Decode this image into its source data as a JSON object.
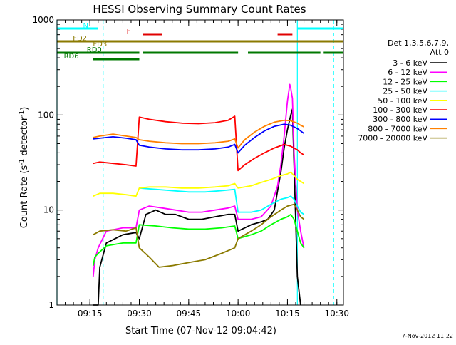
{
  "chart_data": {
    "type": "line",
    "title": "HESSI Observing Summary Count Rates",
    "xlabel": "Start Time (07-Nov-12 09:04:42)",
    "ylabel_main": "Count Rate (s",
    "ylabel_sup1": "-1",
    "ylabel_mid": " detector",
    "ylabel_sup2": "-1",
    "ylabel_end": ")",
    "y_scale": "log",
    "ylim": [
      1,
      1000
    ],
    "xlim_minutes": [
      0,
      87
    ],
    "x_ticks": [
      {
        "minute": 10,
        "label": "09:15"
      },
      {
        "minute": 25,
        "label": "09:30"
      },
      {
        "minute": 40,
        "label": "09:45"
      },
      {
        "minute": 55,
        "label": "10:00"
      },
      {
        "minute": 70,
        "label": "10:15"
      },
      {
        "minute": 85,
        "label": "10:30"
      }
    ],
    "y_ticks": [
      {
        "value": 1,
        "label": "1"
      },
      {
        "value": 10,
        "label": "10"
      },
      {
        "value": 100,
        "label": "100"
      },
      {
        "value": 1000,
        "label": "1000"
      }
    ],
    "legend": {
      "title_line1": "Det 1,3,5,6,7,9,",
      "title_line2": "Att 0",
      "placement": "right"
    },
    "series": [
      {
        "name": "3 - 6 keV",
        "color": "#000000",
        "points": [
          [
            11,
            1.0
          ],
          [
            12.5,
            1.0
          ],
          [
            13,
            2.5
          ],
          [
            15,
            4.5
          ],
          [
            20,
            5.5
          ],
          [
            24,
            5.8
          ],
          [
            25,
            5.0
          ],
          [
            27,
            9
          ],
          [
            30,
            10
          ],
          [
            33,
            9
          ],
          [
            36,
            9
          ],
          [
            40,
            8
          ],
          [
            44,
            8
          ],
          [
            48,
            8.5
          ],
          [
            52,
            9
          ],
          [
            54,
            9
          ],
          [
            55,
            6
          ],
          [
            59,
            7
          ],
          [
            62,
            7.5
          ],
          [
            64,
            8
          ],
          [
            66,
            10
          ],
          [
            67,
            16
          ],
          [
            68,
            25
          ],
          [
            69,
            45
          ],
          [
            70,
            70
          ],
          [
            71,
            100
          ],
          [
            71.5,
            115
          ],
          [
            72,
            30
          ],
          [
            73,
            2
          ],
          [
            74,
            1.0
          ]
        ]
      },
      {
        "name": "6 - 12 keV",
        "color": "#ff00ff",
        "points": [
          [
            11,
            2.0
          ],
          [
            11.5,
            3
          ],
          [
            12.5,
            4
          ],
          [
            15,
            6
          ],
          [
            20,
            6.5
          ],
          [
            24,
            6.5
          ],
          [
            25,
            10
          ],
          [
            28,
            11
          ],
          [
            32,
            10.5
          ],
          [
            36,
            10
          ],
          [
            40,
            9.5
          ],
          [
            44,
            9.5
          ],
          [
            48,
            10
          ],
          [
            52,
            10.5
          ],
          [
            54,
            11
          ],
          [
            55,
            8
          ],
          [
            59,
            8
          ],
          [
            62,
            8.5
          ],
          [
            65,
            11
          ],
          [
            67,
            18
          ],
          [
            68,
            30
          ],
          [
            69,
            60
          ],
          [
            70,
            140
          ],
          [
            70.7,
            210
          ],
          [
            71,
            190
          ],
          [
            71.5,
            150
          ],
          [
            72,
            40
          ],
          [
            73,
            10
          ],
          [
            74,
            6
          ],
          [
            75,
            4
          ]
        ]
      },
      {
        "name": "12 - 25 keV",
        "color": "#00ff00",
        "points": [
          [
            11,
            2.6
          ],
          [
            11.5,
            3.2
          ],
          [
            12.5,
            3.5
          ],
          [
            15,
            4.2
          ],
          [
            20,
            4.5
          ],
          [
            24,
            4.5
          ],
          [
            25,
            7
          ],
          [
            30,
            6.8
          ],
          [
            35,
            6.5
          ],
          [
            40,
            6.3
          ],
          [
            45,
            6.3
          ],
          [
            50,
            6.5
          ],
          [
            54,
            6.8
          ],
          [
            55,
            5
          ],
          [
            59,
            5.5
          ],
          [
            62,
            6
          ],
          [
            65,
            7
          ],
          [
            68,
            8
          ],
          [
            70,
            8.5
          ],
          [
            71,
            9
          ],
          [
            72,
            8
          ],
          [
            73,
            6
          ],
          [
            74,
            4.5
          ],
          [
            75,
            4
          ]
        ]
      },
      {
        "name": "25 - 50 keV",
        "color": "#00ffff",
        "points": [
          [
            11,
            0
          ],
          [
            25,
            0
          ],
          [
            25,
            17
          ],
          [
            30,
            16.5
          ],
          [
            35,
            16
          ],
          [
            40,
            15.5
          ],
          [
            45,
            15.5
          ],
          [
            50,
            16
          ],
          [
            54,
            16.5
          ],
          [
            55,
            9.5
          ],
          [
            59,
            9.5
          ],
          [
            62,
            10
          ],
          [
            65,
            11.5
          ],
          [
            68,
            13
          ],
          [
            70,
            13.5
          ],
          [
            71,
            14
          ],
          [
            72,
            13
          ],
          [
            73,
            11
          ],
          [
            74,
            9.5
          ],
          [
            75,
            9
          ]
        ]
      },
      {
        "name": "50 - 100 keV",
        "color": "#ffff00",
        "points": [
          [
            11,
            14
          ],
          [
            13,
            15
          ],
          [
            17,
            15
          ],
          [
            21,
            14.5
          ],
          [
            24,
            14
          ],
          [
            25,
            17
          ],
          [
            28,
            17.5
          ],
          [
            33,
            17.5
          ],
          [
            38,
            17
          ],
          [
            43,
            17
          ],
          [
            48,
            17.5
          ],
          [
            52,
            18
          ],
          [
            54,
            19
          ],
          [
            55,
            17
          ],
          [
            59,
            18
          ],
          [
            62,
            19.5
          ],
          [
            65,
            21
          ],
          [
            68,
            23
          ],
          [
            70,
            24
          ],
          [
            71,
            25
          ],
          [
            72,
            23
          ],
          [
            73,
            21
          ],
          [
            74,
            20
          ],
          [
            75,
            19
          ]
        ]
      },
      {
        "name": "100 - 300 keV",
        "color": "#ff0000",
        "points": [
          [
            11,
            31
          ],
          [
            13,
            32
          ],
          [
            17,
            31
          ],
          [
            21,
            30
          ],
          [
            24,
            29
          ],
          [
            25,
            95
          ],
          [
            28,
            90
          ],
          [
            33,
            85
          ],
          [
            38,
            82
          ],
          [
            43,
            81
          ],
          [
            48,
            83
          ],
          [
            52,
            88
          ],
          [
            54,
            97
          ],
          [
            55,
            26
          ],
          [
            57,
            30
          ],
          [
            60,
            35
          ],
          [
            63,
            40
          ],
          [
            66,
            45
          ],
          [
            69,
            49
          ],
          [
            71,
            47
          ],
          [
            73,
            43
          ],
          [
            74,
            40
          ],
          [
            75,
            38
          ]
        ]
      },
      {
        "name": "300 - 800 keV",
        "color": "#0000ff",
        "points": [
          [
            11,
            56
          ],
          [
            13,
            57
          ],
          [
            17,
            59
          ],
          [
            21,
            57
          ],
          [
            24,
            55
          ],
          [
            25,
            48
          ],
          [
            28,
            46
          ],
          [
            33,
            44
          ],
          [
            38,
            43
          ],
          [
            43,
            43
          ],
          [
            48,
            44
          ],
          [
            52,
            46
          ],
          [
            54,
            49
          ],
          [
            55,
            40
          ],
          [
            57,
            48
          ],
          [
            60,
            58
          ],
          [
            63,
            68
          ],
          [
            66,
            76
          ],
          [
            69,
            80
          ],
          [
            71,
            78
          ],
          [
            73,
            72
          ],
          [
            74,
            68
          ],
          [
            75,
            64
          ]
        ]
      },
      {
        "name": "800 - 7000 keV",
        "color": "#ff8000",
        "points": [
          [
            11,
            58
          ],
          [
            13,
            60
          ],
          [
            17,
            63
          ],
          [
            21,
            60
          ],
          [
            24,
            58
          ],
          [
            25,
            55
          ],
          [
            28,
            53
          ],
          [
            33,
            51
          ],
          [
            38,
            50
          ],
          [
            43,
            50
          ],
          [
            48,
            51
          ],
          [
            52,
            53
          ],
          [
            54,
            56
          ],
          [
            55,
            45
          ],
          [
            57,
            55
          ],
          [
            60,
            66
          ],
          [
            63,
            76
          ],
          [
            66,
            84
          ],
          [
            69,
            88
          ],
          [
            71,
            87
          ],
          [
            73,
            82
          ],
          [
            74,
            78
          ],
          [
            75,
            75
          ]
        ]
      },
      {
        "name": "7000 - 20000 keV",
        "color": "#8b7a00",
        "points": [
          [
            11,
            5.5
          ],
          [
            13,
            6
          ],
          [
            17,
            6.2
          ],
          [
            21,
            6
          ],
          [
            24,
            6.5
          ],
          [
            25,
            4
          ],
          [
            28,
            3.2
          ],
          [
            31,
            2.5
          ],
          [
            35,
            2.6
          ],
          [
            40,
            2.8
          ],
          [
            45,
            3
          ],
          [
            50,
            3.5
          ],
          [
            54,
            4
          ],
          [
            55,
            5
          ],
          [
            59,
            6
          ],
          [
            62,
            7
          ],
          [
            65,
            8.5
          ],
          [
            68,
            10
          ],
          [
            70,
            11
          ],
          [
            72,
            11.5
          ],
          [
            73,
            10
          ],
          [
            74,
            8.5
          ],
          [
            75,
            8
          ]
        ]
      }
    ],
    "flag_bars": [
      {
        "label": "N",
        "color": "#00ffff",
        "segments": [
          [
            0,
            12.5
          ],
          [
            73,
            87
          ]
        ]
      },
      {
        "label": "F",
        "color": "#e00000",
        "segments": [
          [
            26,
            32
          ],
          [
            67,
            71.5
          ]
        ]
      },
      {
        "label": "FD2",
        "color": "#8b7a00",
        "segments": [
          [
            0,
            87
          ]
        ]
      },
      {
        "label": "FD3",
        "color": "#8b7a00",
        "segments": []
      },
      {
        "label": "RD0",
        "color": "#007800",
        "segments": [
          [
            0,
            25
          ],
          [
            26,
            55
          ],
          [
            58,
            80
          ],
          [
            81,
            87
          ]
        ]
      },
      {
        "label": "RD6",
        "color": "#007800",
        "segments": [
          [
            11,
            25
          ]
        ]
      }
    ],
    "vertical_markers": [
      {
        "minute": 0,
        "color": "#00ffff",
        "style": "solid"
      },
      {
        "minute": 14,
        "color": "#00ffff",
        "style": "dashed"
      },
      {
        "minute": 73,
        "color": "#00ffff",
        "style": "solid"
      },
      {
        "minute": 84,
        "color": "#00ffff",
        "style": "dashed"
      }
    ]
  },
  "footer": {
    "timestamp": "7-Nov-2012 11:22"
  }
}
